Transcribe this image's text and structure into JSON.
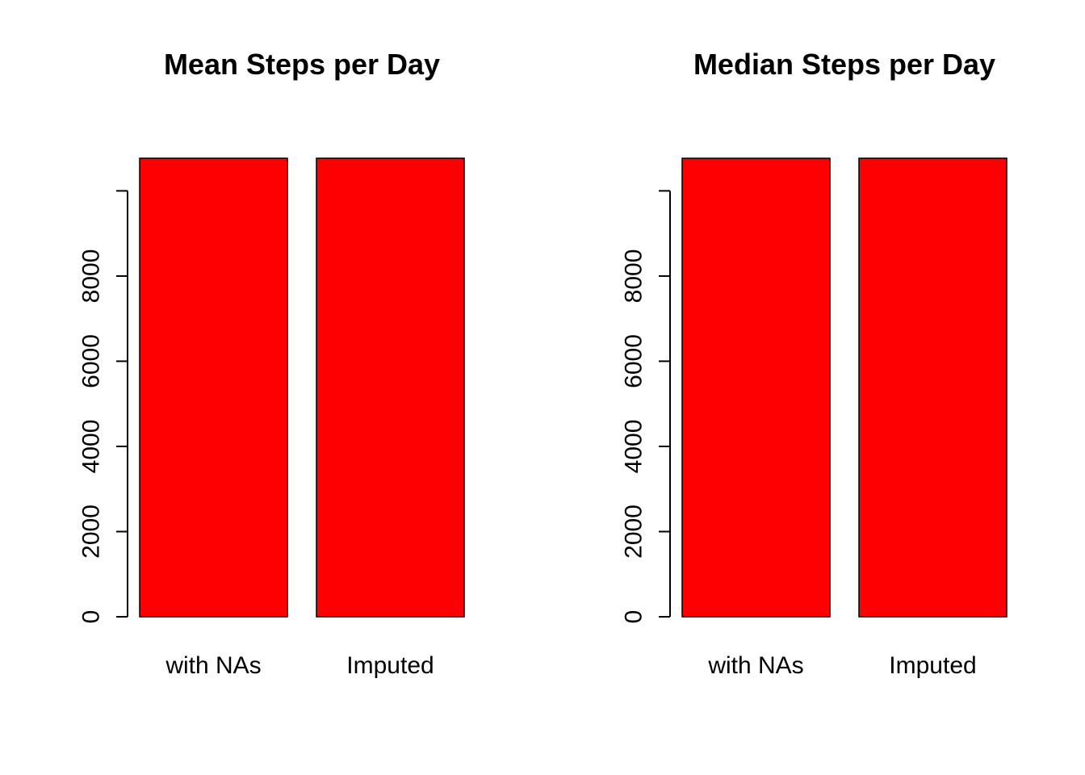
{
  "chart_data": [
    {
      "type": "bar",
      "title": "Mean Steps per Day",
      "xlabel": "",
      "ylabel": "",
      "categories": [
        "with NAs",
        "Imputed"
      ],
      "values": [
        10766.19,
        10766.19
      ],
      "bar_color": "#ff0000",
      "ylim": [
        0,
        10766.19
      ],
      "yticks": [
        0,
        2000,
        4000,
        6000,
        8000,
        10000
      ],
      "ytick_labels": [
        "0",
        "2000",
        "4000",
        "6000",
        "8000",
        ""
      ],
      "grid": false,
      "legend": "none"
    },
    {
      "type": "bar",
      "title": "Median Steps per Day",
      "xlabel": "",
      "ylabel": "",
      "categories": [
        "with NAs",
        "Imputed"
      ],
      "values": [
        10765,
        10766.19
      ],
      "bar_color": "#ff0000",
      "ylim": [
        0,
        10766.19
      ],
      "yticks": [
        0,
        2000,
        4000,
        6000,
        8000,
        10000
      ],
      "ytick_labels": [
        "0",
        "2000",
        "4000",
        "6000",
        "8000",
        ""
      ],
      "grid": false,
      "legend": "none"
    }
  ]
}
